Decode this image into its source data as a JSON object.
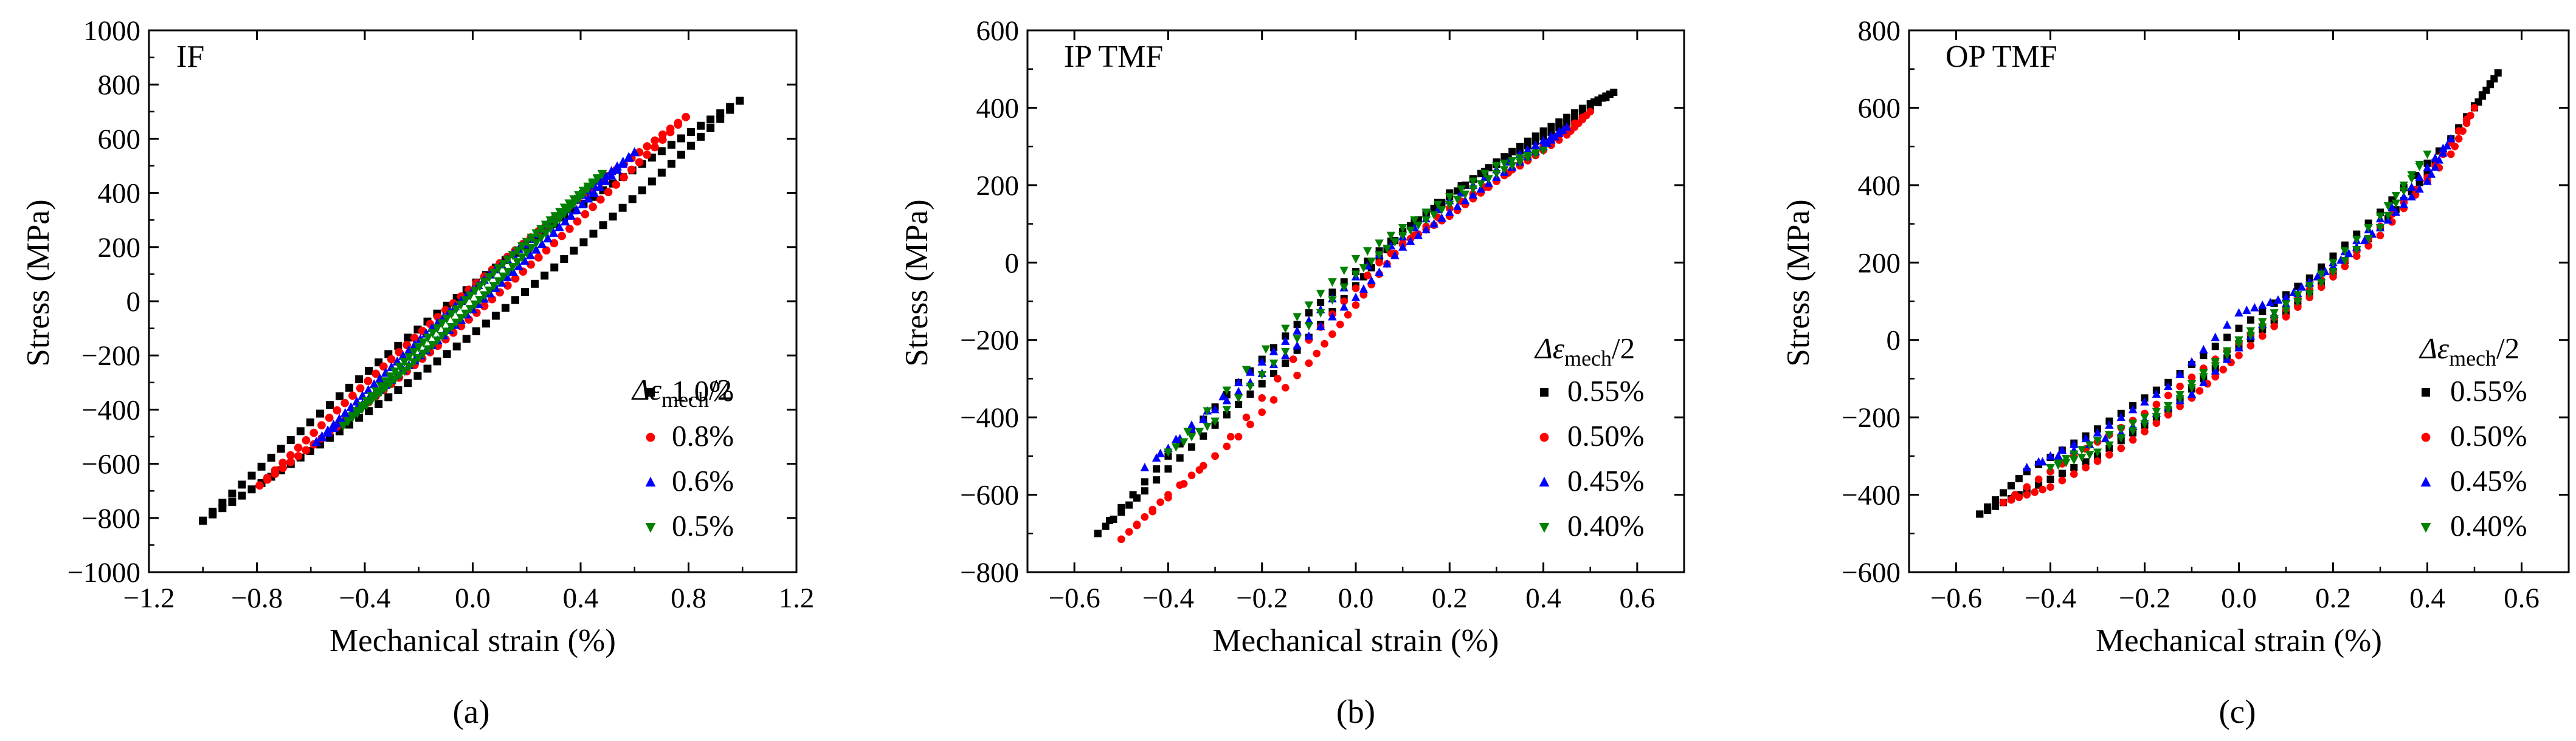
{
  "chart_data": [
    {
      "type": "scatter",
      "panel": "a",
      "caption": "(a)",
      "label": "IF",
      "xlabel": "Mechanical strain (%)",
      "ylabel": "Stress (MPa)",
      "xlim": [
        -1.2,
        1.2
      ],
      "ylim": [
        -1000,
        1000
      ],
      "xticks": [
        -1.2,
        -0.8,
        -0.4,
        0.0,
        0.4,
        0.8,
        1.2
      ],
      "xtick_labels": [
        "−1.2",
        "−0.8",
        "−0.4",
        "0.0",
        "0.4",
        "0.8",
        "1.2"
      ],
      "yticks": [
        -1000,
        -800,
        -600,
        -400,
        -200,
        0,
        200,
        400,
        600,
        800,
        1000
      ],
      "ytick_labels": [
        "−1000",
        "−800",
        "−600",
        "−400",
        "−200",
        "0",
        "200",
        "400",
        "600",
        "800",
        "1000"
      ],
      "legend_title": {
        "base": "Δε",
        "sub": "mech",
        "tail": "/2"
      },
      "legend_position": "right",
      "series": [
        {
          "name": "1.0%",
          "color": "#000000",
          "marker": "square",
          "loop": {
            "x0": -1.0,
            "y0": -810,
            "x1": 0.99,
            "y1": 740,
            "width": 90
          }
        },
        {
          "name": "0.8%",
          "color": "#ff0000",
          "marker": "circle",
          "loop": {
            "x0": -0.79,
            "y0": -680,
            "x1": 0.79,
            "y1": 680,
            "width": 55
          }
        },
        {
          "name": "0.6%",
          "color": "#0000ff",
          "marker": "triangle-up",
          "loop": {
            "x0": -0.58,
            "y0": -520,
            "x1": 0.6,
            "y1": 550,
            "width": 35
          }
        },
        {
          "name": "0.5%",
          "color": "#008000",
          "marker": "triangle-down",
          "loop": {
            "x0": -0.48,
            "y0": -460,
            "x1": 0.48,
            "y1": 470,
            "width": 25
          }
        }
      ]
    },
    {
      "type": "scatter",
      "panel": "b",
      "caption": "(b)",
      "label": "IP TMF",
      "xlabel": "Mechanical strain (%)",
      "ylabel": "Stress (MPa)",
      "xlim": [
        -0.7,
        0.7
      ],
      "ylim": [
        -800,
        600
      ],
      "xticks": [
        -0.6,
        -0.4,
        -0.2,
        0.0,
        0.2,
        0.4,
        0.6
      ],
      "xtick_labels": [
        "−0.6",
        "−0.4",
        "−0.2",
        "0.0",
        "0.2",
        "0.4",
        "0.6"
      ],
      "yticks": [
        -800,
        -600,
        -400,
        -200,
        0,
        200,
        400,
        600
      ],
      "ytick_labels": [
        "−800",
        "−600",
        "−400",
        "−200",
        "0",
        "200",
        "400",
        "600"
      ],
      "legend_title": {
        "base": "Δε",
        "sub": "mech",
        "tail": "/2"
      },
      "legend_position": "right",
      "series": [
        {
          "name": "0.55%",
          "color": "#000000",
          "marker": "square",
          "path": [
            [
              -0.55,
              -700
            ],
            [
              -0.45,
              -590
            ],
            [
              -0.3,
              -420
            ],
            [
              -0.15,
              -260
            ],
            [
              0.0,
              -60
            ],
            [
              0.1,
              80
            ],
            [
              0.2,
              170
            ],
            [
              0.3,
              260
            ],
            [
              0.4,
              340
            ],
            [
              0.5,
              410
            ],
            [
              0.55,
              440
            ],
            [
              0.45,
              360
            ],
            [
              0.35,
              290
            ],
            [
              0.2,
              180
            ],
            [
              0.05,
              30
            ],
            [
              -0.1,
              -130
            ],
            [
              -0.25,
              -310
            ],
            [
              -0.4,
              -500
            ],
            [
              -0.55,
              -700
            ]
          ]
        },
        {
          "name": "0.50%",
          "color": "#ff0000",
          "marker": "circle",
          "path": [
            [
              -0.5,
              -715
            ],
            [
              -0.4,
              -600
            ],
            [
              -0.25,
              -450
            ],
            [
              -0.1,
              -260
            ],
            [
              0.0,
              -110
            ],
            [
              0.1,
              50
            ],
            [
              0.2,
              120
            ],
            [
              0.3,
              210
            ],
            [
              0.4,
              300
            ],
            [
              0.5,
              390
            ],
            [
              0.45,
              330
            ],
            [
              0.35,
              250
            ],
            [
              0.2,
              140
            ],
            [
              0.05,
              0
            ],
            [
              -0.1,
              -200
            ],
            [
              -0.3,
              -500
            ],
            [
              -0.5,
              -715
            ]
          ]
        },
        {
          "name": "0.45%",
          "color": "#0000ff",
          "marker": "triangle-up",
          "path": [
            [
              -0.45,
              -530
            ],
            [
              -0.3,
              -380
            ],
            [
              -0.15,
              -240
            ],
            [
              0.0,
              -90
            ],
            [
              0.1,
              40
            ],
            [
              0.2,
              130
            ],
            [
              0.3,
              220
            ],
            [
              0.4,
              300
            ],
            [
              0.45,
              350
            ],
            [
              0.35,
              280
            ],
            [
              0.2,
              160
            ],
            [
              0.05,
              20
            ],
            [
              -0.1,
              -150
            ],
            [
              -0.25,
              -310
            ],
            [
              -0.45,
              -530
            ]
          ]
        },
        {
          "name": "0.40%",
          "color": "#008000",
          "marker": "triangle-down",
          "path": [
            [
              -0.4,
              -490
            ],
            [
              -0.3,
              -410
            ],
            [
              -0.15,
              -230
            ],
            [
              0.0,
              -30
            ],
            [
              0.1,
              70
            ],
            [
              0.2,
              150
            ],
            [
              0.3,
              230
            ],
            [
              0.4,
              290
            ],
            [
              0.3,
              250
            ],
            [
              0.15,
              130
            ],
            [
              0.0,
              10
            ],
            [
              -0.15,
              -170
            ],
            [
              -0.4,
              -490
            ]
          ]
        }
      ]
    },
    {
      "type": "scatter",
      "panel": "c",
      "caption": "(c)",
      "label": "OP TMF",
      "xlabel": "Mechanical strain (%)",
      "ylabel": "Stress (MPa)",
      "xlim": [
        -0.7,
        0.7
      ],
      "ylim": [
        -600,
        800
      ],
      "xticks": [
        -0.6,
        -0.4,
        -0.2,
        0.0,
        0.2,
        0.4,
        0.6
      ],
      "xtick_labels": [
        "−0.6",
        "−0.4",
        "−0.2",
        "0.0",
        "0.2",
        "0.4",
        "0.6"
      ],
      "yticks": [
        -600,
        -400,
        -200,
        0,
        200,
        400,
        600,
        800
      ],
      "ytick_labels": [
        "−600",
        "−400",
        "−200",
        "0",
        "200",
        "400",
        "600",
        "800"
      ],
      "legend_title": {
        "base": "Δε",
        "sub": "mech",
        "tail": "/2"
      },
      "legend_position": "right",
      "series": [
        {
          "name": "0.55%",
          "color": "#000000",
          "marker": "square",
          "path": [
            [
              -0.55,
              -450
            ],
            [
              -0.45,
              -390
            ],
            [
              -0.3,
              -300
            ],
            [
              -0.15,
              -180
            ],
            [
              0.0,
              -20
            ],
            [
              0.15,
              120
            ],
            [
              0.3,
              290
            ],
            [
              0.4,
              430
            ],
            [
              0.5,
              600
            ],
            [
              0.55,
              690
            ],
            [
              0.45,
              520
            ],
            [
              0.3,
              330
            ],
            [
              0.15,
              160
            ],
            [
              0.0,
              30
            ],
            [
              -0.15,
              -110
            ],
            [
              -0.3,
              -230
            ],
            [
              -0.45,
              -340
            ],
            [
              -0.55,
              -450
            ]
          ]
        },
        {
          "name": "0.50%",
          "color": "#ff0000",
          "marker": "circle",
          "path": [
            [
              -0.5,
              -420
            ],
            [
              -0.4,
              -380
            ],
            [
              -0.25,
              -280
            ],
            [
              -0.1,
              -150
            ],
            [
              0.0,
              -40
            ],
            [
              0.15,
              110
            ],
            [
              0.3,
              270
            ],
            [
              0.45,
              480
            ],
            [
              0.5,
              600
            ],
            [
              0.4,
              420
            ],
            [
              0.25,
              230
            ],
            [
              0.1,
              80
            ],
            [
              -0.05,
              -50
            ],
            [
              -0.2,
              -190
            ],
            [
              -0.35,
              -300
            ],
            [
              -0.5,
              -420
            ]
          ]
        },
        {
          "name": "0.45%",
          "color": "#0000ff",
          "marker": "triangle-up",
          "path": [
            [
              -0.45,
              -330
            ],
            [
              -0.3,
              -240
            ],
            [
              -0.15,
              -120
            ],
            [
              0.0,
              70
            ],
            [
              0.1,
              110
            ],
            [
              0.2,
              190
            ],
            [
              0.3,
              290
            ],
            [
              0.4,
              410
            ],
            [
              0.45,
              520
            ],
            [
              0.35,
              370
            ],
            [
              0.2,
              200
            ],
            [
              0.05,
              40
            ],
            [
              -0.1,
              -140
            ],
            [
              -0.25,
              -240
            ],
            [
              -0.45,
              -330
            ]
          ]
        },
        {
          "name": "0.40%",
          "color": "#008000",
          "marker": "triangle-down",
          "path": [
            [
              -0.4,
              -330
            ],
            [
              -0.3,
              -290
            ],
            [
              -0.15,
              -180
            ],
            [
              0.0,
              -10
            ],
            [
              0.15,
              120
            ],
            [
              0.3,
              290
            ],
            [
              0.4,
              480
            ],
            [
              0.3,
              320
            ],
            [
              0.15,
              140
            ],
            [
              0.0,
              0
            ],
            [
              -0.15,
              -170
            ],
            [
              -0.3,
              -260
            ],
            [
              -0.4,
              -330
            ]
          ]
        }
      ]
    }
  ]
}
